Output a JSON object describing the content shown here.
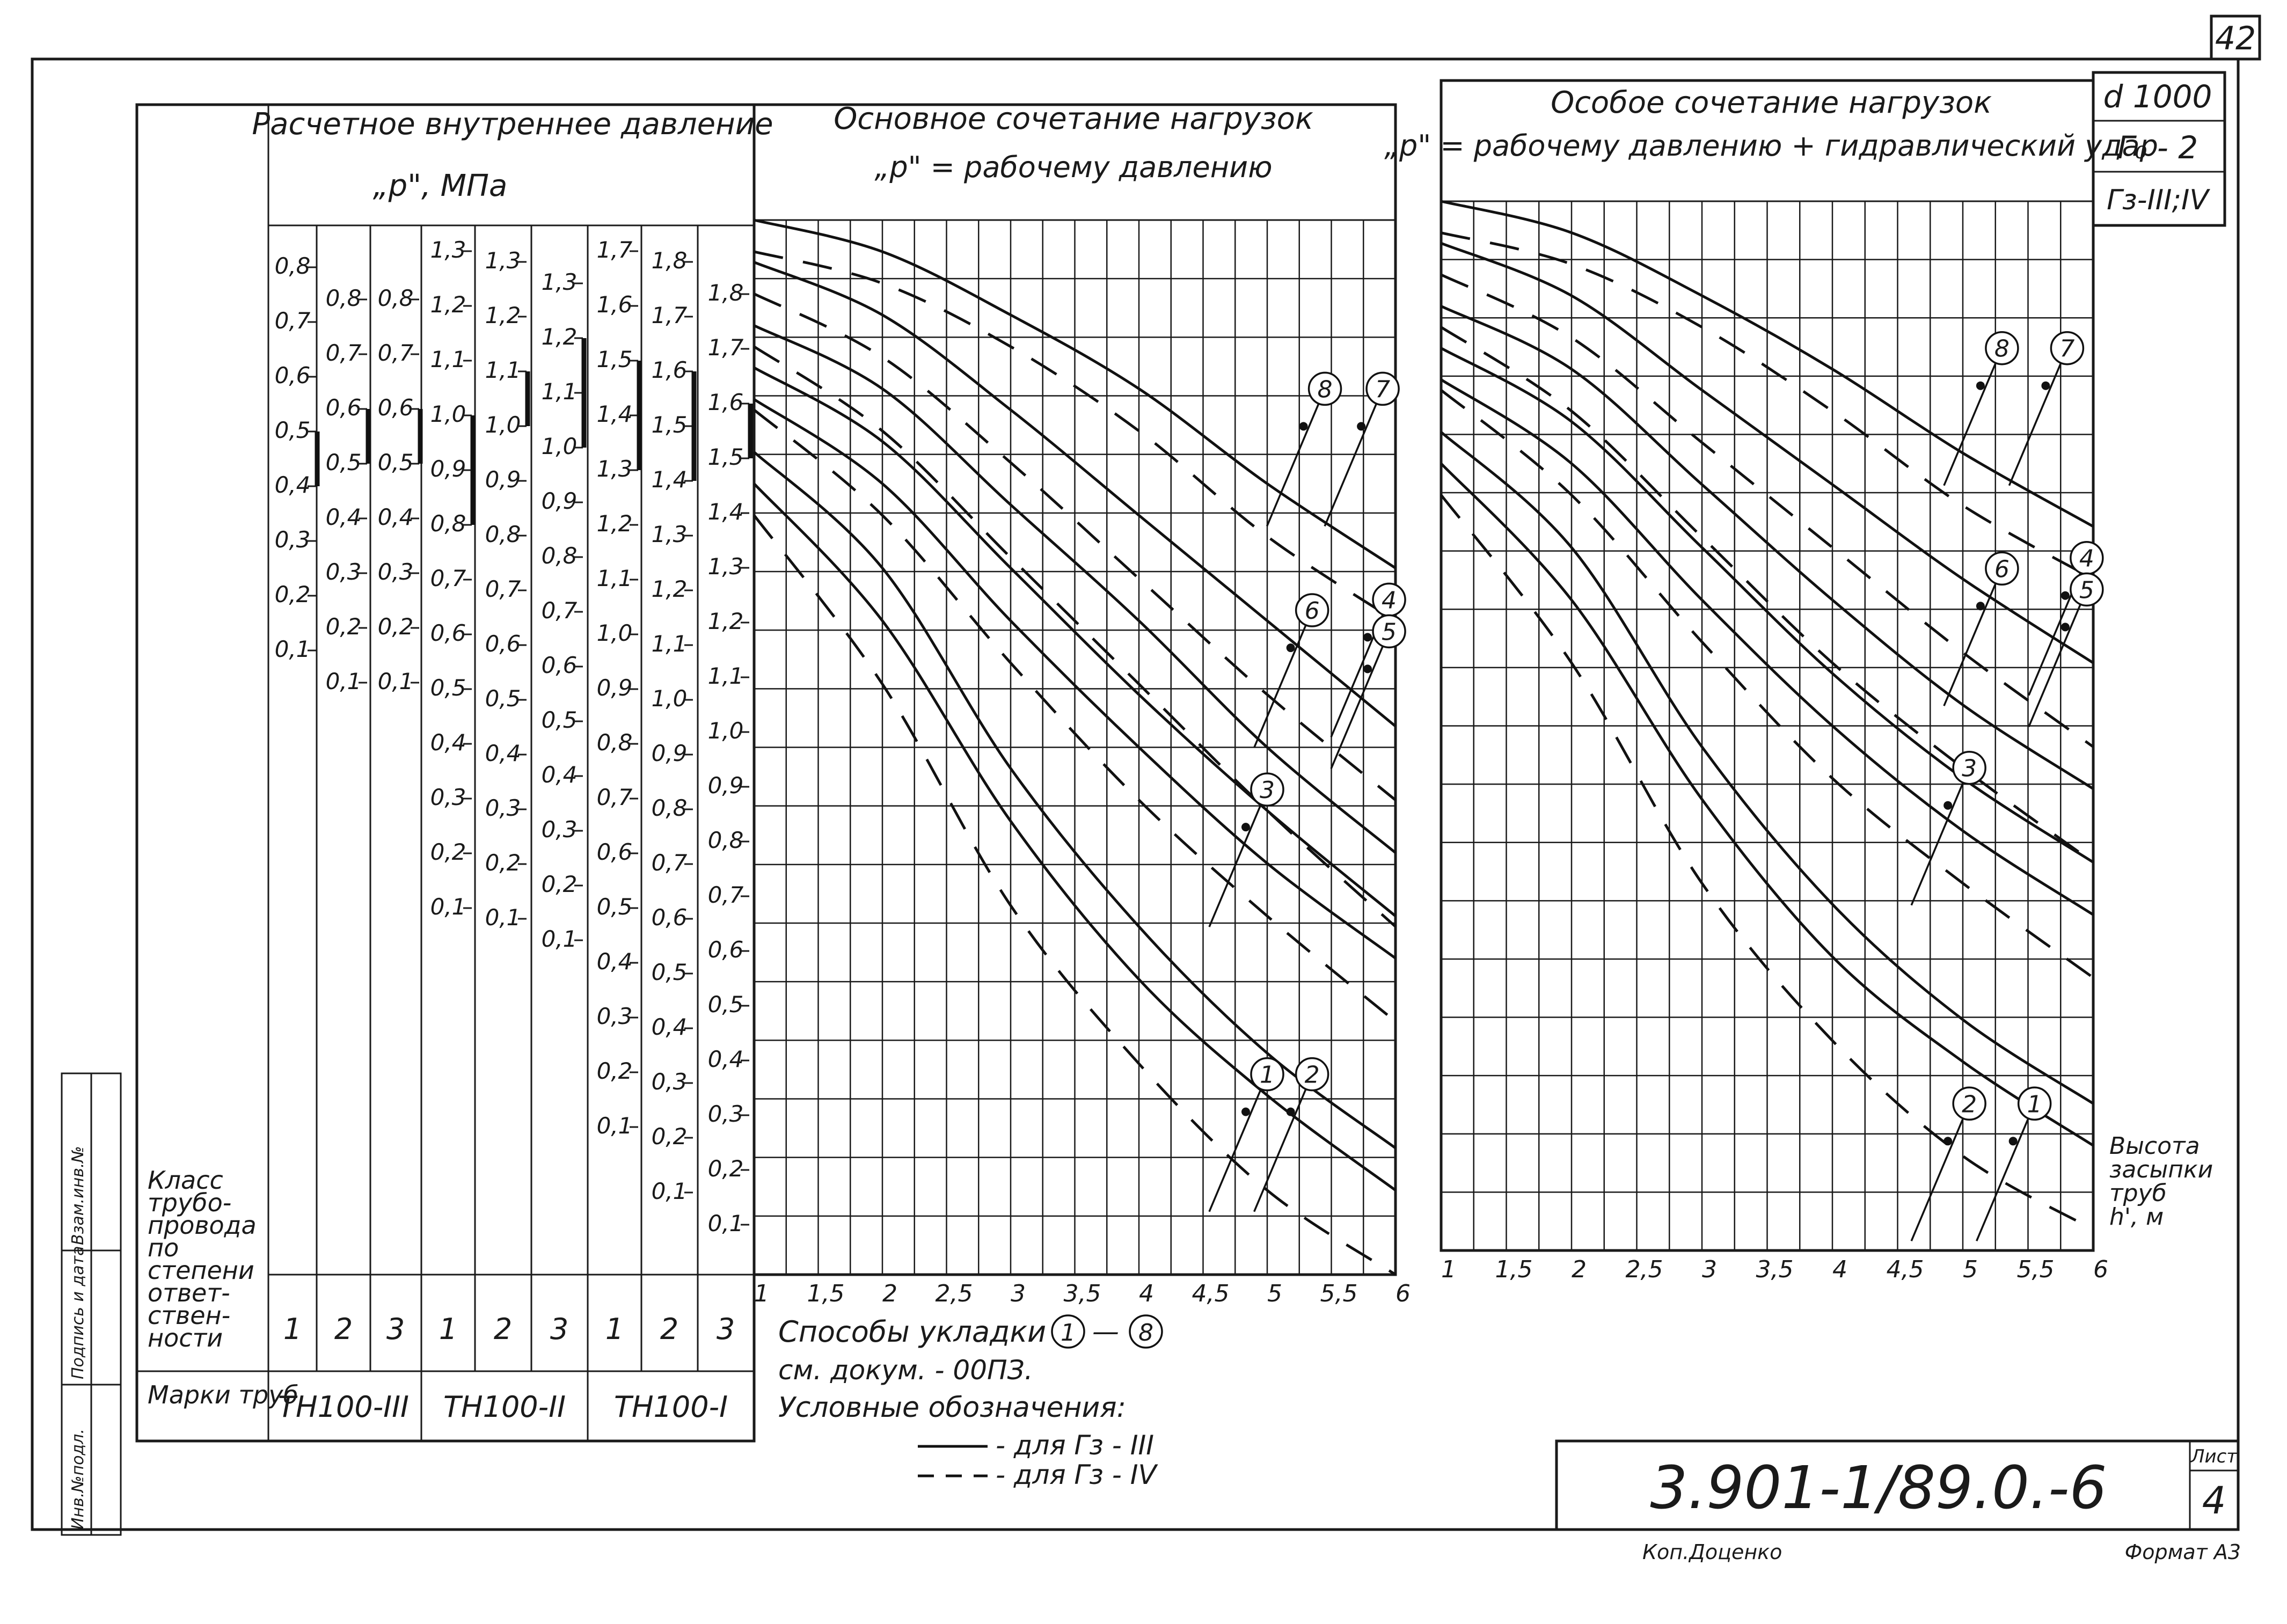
{
  "sheet": {
    "page_number": "42",
    "series_no": "3.901-1/89.0.-6",
    "list_label": "Лист",
    "list_no": "4",
    "copied_by": "Коп.Доценко",
    "format": "Формат А3"
  },
  "margin_stamps": [
    "Инв.№подл.",
    "Подпись и дата",
    "Взам.инв.№"
  ],
  "spec_box": [
    "d 1000",
    "Г₀ - 2",
    "Гз-III;IV"
  ],
  "pressure_table": {
    "title_line1": "Расчетное внутреннее давление",
    "title_line2": "„p\", МПа",
    "class_label": "Класс трубо-провода по степени ответ-ствен-ности",
    "marks_label": "Марки труб",
    "columns": [
      {
        "cls": "1",
        "ticks": [
          "0,8",
          "0,7",
          "0,6",
          "0,5",
          "0,4",
          "0,3",
          "0,2",
          "0,1"
        ],
        "bar": [
          "0,5",
          "0,4"
        ]
      },
      {
        "cls": "2",
        "ticks": [
          "0,8",
          "0,7",
          "0,6",
          "0,5",
          "0,4",
          "0,3",
          "0,2",
          "0,1"
        ],
        "bar": [
          "0,6",
          "0,5"
        ]
      },
      {
        "cls": "3",
        "ticks": [
          "0,8",
          "0,7",
          "0,6",
          "0,5",
          "0,4",
          "0,3",
          "0,2",
          "0,1"
        ],
        "bar": [
          "0,6",
          "0,5"
        ]
      },
      {
        "cls": "1",
        "ticks": [
          "1,3",
          "1,2",
          "1,1",
          "1,0",
          "0,9",
          "0,8",
          "0,7",
          "0,6",
          "0,5",
          "0,4",
          "0,3",
          "0,2",
          "0,1"
        ],
        "bar": [
          "1,0",
          "0,8"
        ]
      },
      {
        "cls": "2",
        "ticks": [
          "1,3",
          "1,2",
          "1,1",
          "1,0",
          "0,9",
          "0,8",
          "0,7",
          "0,6",
          "0,5",
          "0,4",
          "0,3",
          "0,2",
          "0,1"
        ],
        "bar": [
          "1,1",
          "1,0"
        ]
      },
      {
        "cls": "3",
        "ticks": [
          "1,3",
          "1,2",
          "1,1",
          "1,0",
          "0,9",
          "0,8",
          "0,7",
          "0,6",
          "0,5",
          "0,4",
          "0,3",
          "0,2",
          "0,1"
        ],
        "bar": [
          "1,2",
          "1,0"
        ]
      },
      {
        "cls": "1",
        "ticks": [
          "1,7",
          "1,6",
          "1,5",
          "1,4",
          "1,3",
          "1,2",
          "1,1",
          "1,0",
          "0,9",
          "0,8",
          "0,7",
          "0,6",
          "0,5",
          "0,4",
          "0,3",
          "0,2",
          "0,1"
        ],
        "bar": [
          "1,5",
          "1,3"
        ]
      },
      {
        "cls": "2",
        "ticks": [
          "1,8",
          "1,7",
          "1,6",
          "1,5",
          "1,4",
          "1,3",
          "1,2",
          "1,1",
          "1,0",
          "0,9",
          "0,8",
          "0,7",
          "0,6",
          "0,5",
          "0,4",
          "0,3",
          "0,2",
          "0,1"
        ],
        "bar": [
          "1,6",
          "1,4"
        ]
      },
      {
        "cls": "3",
        "ticks": [
          "1,8",
          "1,7",
          "1,6",
          "1,5",
          "1,4",
          "1,3",
          "1,2",
          "1,1",
          "1,0",
          "0,9",
          "0,8",
          "0,7",
          "0,6",
          "0,5",
          "0,4",
          "0,3",
          "0,2",
          "0,1"
        ],
        "bar": [
          "1,6",
          "1,5"
        ]
      }
    ],
    "pipe_marks": [
      "ТН100-III",
      "ТН100-II",
      "ТН100-I"
    ]
  },
  "legend": {
    "line1": "Способы укладки",
    "from": "1",
    "dash": "—",
    "to": "8",
    "line2": "см. докум. - 00ПЗ.",
    "line3": "Условные обозначения:",
    "solid_label": "- для Гз - III",
    "dashed_label": "- для Гз - IV"
  },
  "axis_note": "Высота засыпки труб h', м",
  "chart_data": [
    {
      "type": "line",
      "title": "Основное сочетание нагрузок",
      "subtitle": "„p\" = рабочему давлению",
      "x_tick_labels": [
        "1",
        "1,5",
        "2",
        "2,5",
        "3",
        "3,5",
        "4",
        "4,5",
        "5",
        "5,5",
        "6"
      ],
      "xlim": [
        1,
        6
      ],
      "series": [
        {
          "id": "8",
          "style": "solid",
          "x": [
            1,
            2,
            3,
            4,
            5,
            6
          ],
          "y": [
            1.0,
            0.97,
            0.91,
            0.84,
            0.75,
            0.67
          ]
        },
        {
          "id": "8",
          "style": "dashed",
          "x": [
            1,
            2,
            3,
            4,
            5,
            6
          ],
          "y": [
            0.97,
            0.94,
            0.88,
            0.8,
            0.7,
            0.62
          ]
        },
        {
          "id": "7",
          "style": "solid",
          "x": [
            1,
            2,
            3,
            4,
            5,
            6
          ],
          "y": [
            0.96,
            0.91,
            0.82,
            0.72,
            0.62,
            0.52
          ]
        },
        {
          "id": "7",
          "style": "dashed",
          "x": [
            1,
            2,
            3,
            4,
            5,
            6
          ],
          "y": [
            0.93,
            0.87,
            0.77,
            0.66,
            0.55,
            0.45
          ]
        },
        {
          "id": "6",
          "style": "solid",
          "x": [
            1,
            2,
            3,
            4,
            5,
            6
          ],
          "y": [
            0.9,
            0.84,
            0.73,
            0.62,
            0.5,
            0.4
          ]
        },
        {
          "id": "6",
          "style": "dashed",
          "x": [
            1,
            2,
            3,
            4,
            5,
            6
          ],
          "y": [
            0.88,
            0.8,
            0.68,
            0.56,
            0.44,
            0.33
          ]
        },
        {
          "id": "5",
          "style": "solid",
          "x": [
            1,
            2,
            3,
            4,
            5,
            6
          ],
          "y": [
            0.86,
            0.79,
            0.67,
            0.55,
            0.44,
            0.34
          ]
        },
        {
          "id": "4",
          "style": "solid",
          "x": [
            1,
            2,
            3,
            4,
            5,
            6
          ],
          "y": [
            0.83,
            0.75,
            0.62,
            0.5,
            0.39,
            0.3
          ]
        },
        {
          "id": "3",
          "style": "dashed",
          "x": [
            1,
            2,
            3,
            4,
            5,
            6
          ],
          "y": [
            0.82,
            0.72,
            0.58,
            0.45,
            0.34,
            0.24
          ]
        },
        {
          "id": "2",
          "style": "solid",
          "x": [
            1,
            2,
            3,
            4,
            5,
            6
          ],
          "y": [
            0.78,
            0.67,
            0.48,
            0.33,
            0.21,
            0.12
          ]
        },
        {
          "id": "1",
          "style": "solid",
          "x": [
            1,
            2,
            3,
            4,
            5,
            6
          ],
          "y": [
            0.75,
            0.62,
            0.43,
            0.28,
            0.17,
            0.08
          ]
        },
        {
          "id": "1",
          "style": "dashed",
          "x": [
            1,
            2,
            3,
            4,
            5,
            6
          ],
          "y": [
            0.72,
            0.56,
            0.35,
            0.2,
            0.08,
            0.0
          ]
        }
      ],
      "markers": [
        {
          "id": "1",
          "x": 5.0,
          "y": 0.19
        },
        {
          "id": "2",
          "x": 5.35,
          "y": 0.19
        },
        {
          "id": "3",
          "x": 5.0,
          "y": 0.46
        },
        {
          "id": "4",
          "x": 5.95,
          "y": 0.64
        },
        {
          "id": "5",
          "x": 5.95,
          "y": 0.61
        },
        {
          "id": "6",
          "x": 5.35,
          "y": 0.63
        },
        {
          "id": "7",
          "x": 5.9,
          "y": 0.84
        },
        {
          "id": "8",
          "x": 5.45,
          "y": 0.84
        }
      ]
    },
    {
      "type": "line",
      "title": "Особое сочетание нагрузок",
      "subtitle": "„p\" = рабочему давлению + гидравлический удар",
      "x_tick_labels": [
        "1",
        "1,5",
        "2",
        "2,5",
        "3",
        "3,5",
        "4",
        "4,5",
        "5",
        "5,5",
        "6"
      ],
      "xlim": [
        1,
        6
      ],
      "series": [
        {
          "id": "8",
          "style": "solid",
          "x": [
            1,
            2,
            3,
            4,
            5,
            6
          ],
          "y": [
            1.0,
            0.97,
            0.91,
            0.84,
            0.76,
            0.69
          ]
        },
        {
          "id": "8",
          "style": "dashed",
          "x": [
            1,
            2,
            3,
            4,
            5,
            6
          ],
          "y": [
            0.97,
            0.94,
            0.88,
            0.8,
            0.71,
            0.64
          ]
        },
        {
          "id": "7",
          "style": "solid",
          "x": [
            1,
            2,
            3,
            4,
            5,
            6
          ],
          "y": [
            0.96,
            0.91,
            0.82,
            0.73,
            0.64,
            0.56
          ]
        },
        {
          "id": "7",
          "style": "dashed",
          "x": [
            1,
            2,
            3,
            4,
            5,
            6
          ],
          "y": [
            0.93,
            0.87,
            0.77,
            0.67,
            0.57,
            0.48
          ]
        },
        {
          "id": "6",
          "style": "solid",
          "x": [
            1,
            2,
            3,
            4,
            5,
            6
          ],
          "y": [
            0.9,
            0.84,
            0.73,
            0.62,
            0.52,
            0.44
          ]
        },
        {
          "id": "6",
          "style": "dashed",
          "x": [
            1,
            2,
            3,
            4,
            5,
            6
          ],
          "y": [
            0.88,
            0.8,
            0.68,
            0.56,
            0.46,
            0.37
          ]
        },
        {
          "id": "5",
          "style": "solid",
          "x": [
            1,
            2,
            3,
            4,
            5,
            6
          ],
          "y": [
            0.86,
            0.79,
            0.67,
            0.55,
            0.45,
            0.37
          ]
        },
        {
          "id": "4",
          "style": "solid",
          "x": [
            1,
            2,
            3,
            4,
            5,
            6
          ],
          "y": [
            0.83,
            0.75,
            0.62,
            0.5,
            0.4,
            0.32
          ]
        },
        {
          "id": "3",
          "style": "dashed",
          "x": [
            1,
            2,
            3,
            4,
            5,
            6
          ],
          "y": [
            0.82,
            0.72,
            0.58,
            0.45,
            0.35,
            0.26
          ]
        },
        {
          "id": "2",
          "style": "solid",
          "x": [
            1,
            2,
            3,
            4,
            5,
            6
          ],
          "y": [
            0.78,
            0.67,
            0.48,
            0.33,
            0.22,
            0.14
          ]
        },
        {
          "id": "1",
          "style": "solid",
          "x": [
            1,
            2,
            3,
            4,
            5,
            6
          ],
          "y": [
            0.75,
            0.62,
            0.43,
            0.28,
            0.18,
            0.1
          ]
        },
        {
          "id": "1",
          "style": "dashed",
          "x": [
            1,
            2,
            3,
            4,
            5,
            6
          ],
          "y": [
            0.72,
            0.56,
            0.35,
            0.2,
            0.09,
            0.02
          ]
        }
      ],
      "markers": [
        {
          "id": "2",
          "x": 5.05,
          "y": 0.14
        },
        {
          "id": "1",
          "x": 5.55,
          "y": 0.14
        },
        {
          "id": "3",
          "x": 5.05,
          "y": 0.46
        },
        {
          "id": "4",
          "x": 5.95,
          "y": 0.66
        },
        {
          "id": "5",
          "x": 5.95,
          "y": 0.63
        },
        {
          "id": "6",
          "x": 5.3,
          "y": 0.65
        },
        {
          "id": "7",
          "x": 5.8,
          "y": 0.86
        },
        {
          "id": "8",
          "x": 5.3,
          "y": 0.86
        }
      ]
    }
  ]
}
